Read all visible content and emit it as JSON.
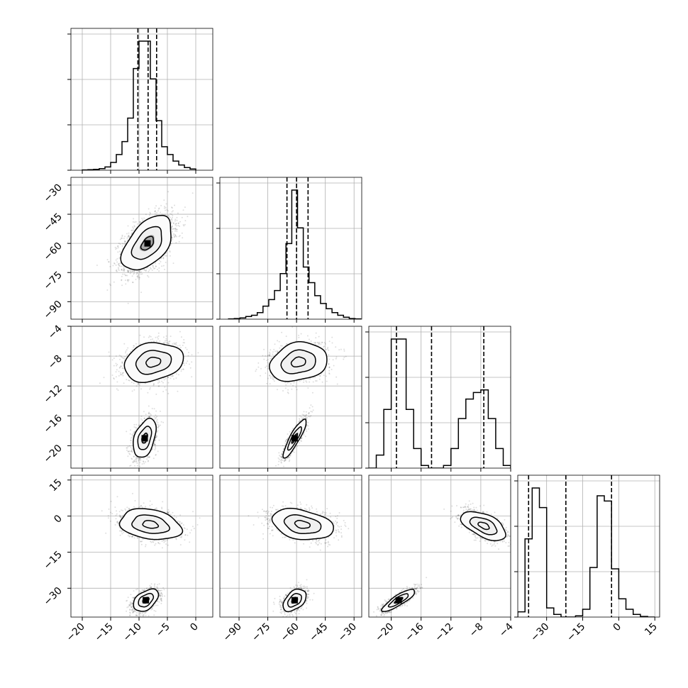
{
  "chart_data": {
    "type": "corner",
    "parameters": [
      {
        "xlim": [
          -22,
          3
        ],
        "ticks": [
          -20,
          -15,
          -10,
          -5,
          0
        ],
        "tick_labels": [
          "−20",
          "−15",
          "−10",
          "−5",
          "0"
        ],
        "quantiles": [
          -10.2,
          -8.4,
          -6.9
        ]
      },
      {
        "xlim": [
          -100,
          -26
        ],
        "ylim": [
          -99,
          -26
        ],
        "ticks": [
          -90,
          -75,
          -60,
          -45,
          -30
        ],
        "tick_labels": [
          "−90",
          "−75",
          "−60",
          "−45",
          "−30"
        ],
        "quantiles": [
          -65.0,
          -60.0,
          -54.0
        ]
      },
      {
        "xlim": [
          -23,
          -4
        ],
        "ylim": [
          -23,
          -4
        ],
        "ticks": [
          -20,
          -16,
          -12,
          -8,
          -4
        ],
        "tick_labels": [
          "−20",
          "−16",
          "−12",
          "−8",
          "−4"
        ],
        "quantiles": [
          -19.3,
          -14.6,
          -7.6
        ]
      },
      {
        "xlim": [
          -42,
          17
        ],
        "ylim": [
          -42,
          17
        ],
        "ticks": [
          -30,
          -15,
          0,
          15
        ],
        "tick_labels": [
          "−30",
          "−15",
          "0",
          "15"
        ],
        "quantiles": [
          -37.5,
          -22.0,
          -3.0
        ]
      }
    ],
    "histograms": [
      {
        "bins": [
          -19.5,
          -18.5,
          -17.5,
          -16.5,
          -15.5,
          -14.5,
          -13.5,
          -12.5,
          -11.5,
          -10.5,
          -9.5,
          -8.5,
          -7.5,
          -6.5,
          -5.5,
          -4.5,
          -3.5,
          -2.5,
          -1.5,
          -0.5
        ],
        "counts": [
          0.2,
          0.4,
          0.7,
          1.2,
          2.5,
          6,
          12,
          22,
          40,
          78,
          99,
          99,
          70,
          38,
          18,
          12,
          7,
          4,
          2,
          1
        ]
      },
      {
        "bins": [
          -94,
          -91,
          -88,
          -85,
          -82,
          -79,
          -76,
          -73,
          -70,
          -67,
          -64,
          -61,
          -58,
          -55,
          -52,
          -49,
          -46,
          -43,
          -40,
          -37,
          -34,
          -31,
          -28
        ],
        "counts": [
          0.2,
          0.5,
          1,
          2,
          3,
          5,
          10,
          15,
          22,
          35,
          58,
          99,
          70,
          40,
          28,
          18,
          12,
          8,
          5,
          3,
          1.5,
          0.5,
          0.2
        ]
      },
      {
        "bins": [
          -22.5,
          -21.5,
          -20.5,
          -19.5,
          -18.5,
          -17.5,
          -16.5,
          -15.5,
          -14.5,
          -13.5,
          -12.5,
          -11.5,
          -10.5,
          -9.5,
          -8.5,
          -7.5,
          -6.5,
          -5.5,
          -4.5
        ],
        "counts": [
          0,
          10,
          45,
          99,
          99,
          45,
          15,
          2,
          0,
          0,
          2,
          15,
          38,
          53,
          58,
          60,
          38,
          15,
          2
        ]
      },
      {
        "bins": [
          -40.5,
          -37.5,
          -34.5,
          -31.5,
          -28.5,
          -25.5,
          -22.5,
          -19.5,
          -16.5,
          -13.5,
          -10.5,
          -7.5,
          -4.5,
          -1.5,
          1.5,
          4.5,
          7.5,
          10.5,
          13.5
        ],
        "counts": [
          4,
          60,
          99,
          84,
          7,
          2,
          0,
          0,
          1,
          6,
          38,
          93,
          89,
          37,
          14,
          6,
          2,
          0.5,
          0
        ]
      }
    ],
    "pairs": [
      {
        "x": 0,
        "y": 1,
        "clusters": [
          {
            "cx": -8.5,
            "cy": -60,
            "sx": 2.2,
            "sy": 7.0,
            "rho": 0.5,
            "w": 1
          }
        ]
      },
      {
        "x": 0,
        "y": 2,
        "clusters": [
          {
            "cx": -7.5,
            "cy": -8.8,
            "sx": 2.6,
            "sy": 1.3,
            "rho": 0.2,
            "w": 0.5
          },
          {
            "cx": -9.0,
            "cy": -19.0,
            "sx": 1.0,
            "sy": 1.3,
            "rho": 0.4,
            "w": 0.5
          }
        ]
      },
      {
        "x": 1,
        "y": 2,
        "clusters": [
          {
            "cx": -59,
            "cy": -8.8,
            "sx": 7.5,
            "sy": 1.3,
            "rho": 0.2,
            "w": 0.5
          },
          {
            "cx": -61,
            "cy": -19.0,
            "sx": 3.0,
            "sy": 1.3,
            "rho": 0.88,
            "w": 0.5
          }
        ]
      },
      {
        "x": 0,
        "y": 3,
        "clusters": [
          {
            "cx": -8.0,
            "cy": -3.5,
            "sx": 2.7,
            "sy": 3.2,
            "rho": -0.25,
            "w": 0.5
          },
          {
            "cx": -8.8,
            "cy": -35,
            "sx": 1.1,
            "sy": 2.3,
            "rho": 0.45,
            "w": 0.5
          }
        ]
      },
      {
        "x": 1,
        "y": 3,
        "clusters": [
          {
            "cx": -57,
            "cy": -3.5,
            "sx": 8.0,
            "sy": 3.2,
            "rho": -0.3,
            "w": 0.5
          },
          {
            "cx": -61,
            "cy": -35,
            "sx": 3.0,
            "sy": 2.3,
            "rho": 0.45,
            "w": 0.5
          }
        ]
      },
      {
        "x": 2,
        "y": 3,
        "clusters": [
          {
            "cx": -7.6,
            "cy": -4.0,
            "sx": 1.5,
            "sy": 3.0,
            "rho": -0.55,
            "w": 0.5
          },
          {
            "cx": -19.0,
            "cy": -35,
            "sx": 1.1,
            "sy": 2.3,
            "rho": 0.85,
            "w": 0.5
          }
        ]
      }
    ],
    "grid": true,
    "quantile_line_style": "dashed"
  }
}
